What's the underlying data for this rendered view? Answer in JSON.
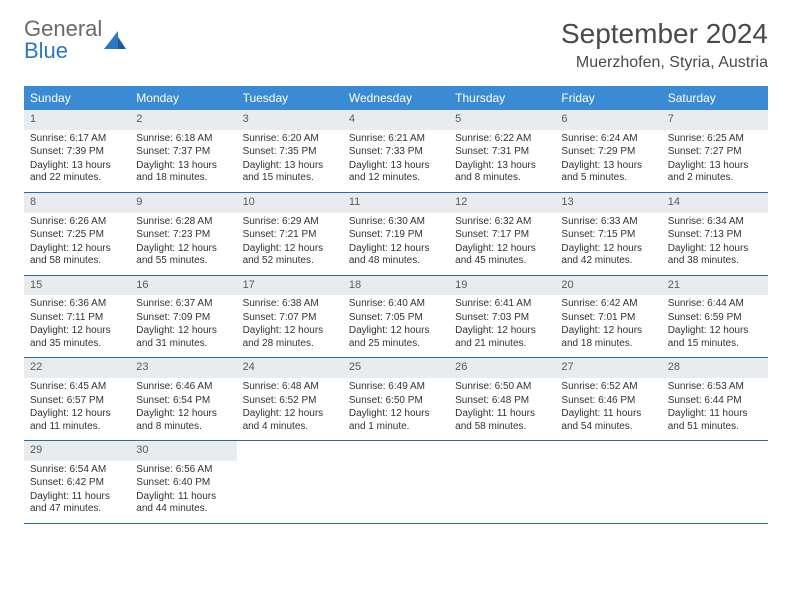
{
  "logo": {
    "text1": "General",
    "text2": "Blue"
  },
  "title": "September 2024",
  "location": "Muerzhofen, Styria, Austria",
  "colors": {
    "header_bg": "#3b8bd4",
    "header_text": "#ffffff",
    "daynum_bg": "#e8ecef",
    "border": "#2b6aa8",
    "logo_gray": "#6a6a6a",
    "logo_blue": "#2b78c2",
    "text": "#333333"
  },
  "day_headers": [
    "Sunday",
    "Monday",
    "Tuesday",
    "Wednesday",
    "Thursday",
    "Friday",
    "Saturday"
  ],
  "weeks": [
    [
      {
        "n": "1",
        "sr": "Sunrise: 6:17 AM",
        "ss": "Sunset: 7:39 PM",
        "dl": "Daylight: 13 hours and 22 minutes."
      },
      {
        "n": "2",
        "sr": "Sunrise: 6:18 AM",
        "ss": "Sunset: 7:37 PM",
        "dl": "Daylight: 13 hours and 18 minutes."
      },
      {
        "n": "3",
        "sr": "Sunrise: 6:20 AM",
        "ss": "Sunset: 7:35 PM",
        "dl": "Daylight: 13 hours and 15 minutes."
      },
      {
        "n": "4",
        "sr": "Sunrise: 6:21 AM",
        "ss": "Sunset: 7:33 PM",
        "dl": "Daylight: 13 hours and 12 minutes."
      },
      {
        "n": "5",
        "sr": "Sunrise: 6:22 AM",
        "ss": "Sunset: 7:31 PM",
        "dl": "Daylight: 13 hours and 8 minutes."
      },
      {
        "n": "6",
        "sr": "Sunrise: 6:24 AM",
        "ss": "Sunset: 7:29 PM",
        "dl": "Daylight: 13 hours and 5 minutes."
      },
      {
        "n": "7",
        "sr": "Sunrise: 6:25 AM",
        "ss": "Sunset: 7:27 PM",
        "dl": "Daylight: 13 hours and 2 minutes."
      }
    ],
    [
      {
        "n": "8",
        "sr": "Sunrise: 6:26 AM",
        "ss": "Sunset: 7:25 PM",
        "dl": "Daylight: 12 hours and 58 minutes."
      },
      {
        "n": "9",
        "sr": "Sunrise: 6:28 AM",
        "ss": "Sunset: 7:23 PM",
        "dl": "Daylight: 12 hours and 55 minutes."
      },
      {
        "n": "10",
        "sr": "Sunrise: 6:29 AM",
        "ss": "Sunset: 7:21 PM",
        "dl": "Daylight: 12 hours and 52 minutes."
      },
      {
        "n": "11",
        "sr": "Sunrise: 6:30 AM",
        "ss": "Sunset: 7:19 PM",
        "dl": "Daylight: 12 hours and 48 minutes."
      },
      {
        "n": "12",
        "sr": "Sunrise: 6:32 AM",
        "ss": "Sunset: 7:17 PM",
        "dl": "Daylight: 12 hours and 45 minutes."
      },
      {
        "n": "13",
        "sr": "Sunrise: 6:33 AM",
        "ss": "Sunset: 7:15 PM",
        "dl": "Daylight: 12 hours and 42 minutes."
      },
      {
        "n": "14",
        "sr": "Sunrise: 6:34 AM",
        "ss": "Sunset: 7:13 PM",
        "dl": "Daylight: 12 hours and 38 minutes."
      }
    ],
    [
      {
        "n": "15",
        "sr": "Sunrise: 6:36 AM",
        "ss": "Sunset: 7:11 PM",
        "dl": "Daylight: 12 hours and 35 minutes."
      },
      {
        "n": "16",
        "sr": "Sunrise: 6:37 AM",
        "ss": "Sunset: 7:09 PM",
        "dl": "Daylight: 12 hours and 31 minutes."
      },
      {
        "n": "17",
        "sr": "Sunrise: 6:38 AM",
        "ss": "Sunset: 7:07 PM",
        "dl": "Daylight: 12 hours and 28 minutes."
      },
      {
        "n": "18",
        "sr": "Sunrise: 6:40 AM",
        "ss": "Sunset: 7:05 PM",
        "dl": "Daylight: 12 hours and 25 minutes."
      },
      {
        "n": "19",
        "sr": "Sunrise: 6:41 AM",
        "ss": "Sunset: 7:03 PM",
        "dl": "Daylight: 12 hours and 21 minutes."
      },
      {
        "n": "20",
        "sr": "Sunrise: 6:42 AM",
        "ss": "Sunset: 7:01 PM",
        "dl": "Daylight: 12 hours and 18 minutes."
      },
      {
        "n": "21",
        "sr": "Sunrise: 6:44 AM",
        "ss": "Sunset: 6:59 PM",
        "dl": "Daylight: 12 hours and 15 minutes."
      }
    ],
    [
      {
        "n": "22",
        "sr": "Sunrise: 6:45 AM",
        "ss": "Sunset: 6:57 PM",
        "dl": "Daylight: 12 hours and 11 minutes."
      },
      {
        "n": "23",
        "sr": "Sunrise: 6:46 AM",
        "ss": "Sunset: 6:54 PM",
        "dl": "Daylight: 12 hours and 8 minutes."
      },
      {
        "n": "24",
        "sr": "Sunrise: 6:48 AM",
        "ss": "Sunset: 6:52 PM",
        "dl": "Daylight: 12 hours and 4 minutes."
      },
      {
        "n": "25",
        "sr": "Sunrise: 6:49 AM",
        "ss": "Sunset: 6:50 PM",
        "dl": "Daylight: 12 hours and 1 minute."
      },
      {
        "n": "26",
        "sr": "Sunrise: 6:50 AM",
        "ss": "Sunset: 6:48 PM",
        "dl": "Daylight: 11 hours and 58 minutes."
      },
      {
        "n": "27",
        "sr": "Sunrise: 6:52 AM",
        "ss": "Sunset: 6:46 PM",
        "dl": "Daylight: 11 hours and 54 minutes."
      },
      {
        "n": "28",
        "sr": "Sunrise: 6:53 AM",
        "ss": "Sunset: 6:44 PM",
        "dl": "Daylight: 11 hours and 51 minutes."
      }
    ],
    [
      {
        "n": "29",
        "sr": "Sunrise: 6:54 AM",
        "ss": "Sunset: 6:42 PM",
        "dl": "Daylight: 11 hours and 47 minutes."
      },
      {
        "n": "30",
        "sr": "Sunrise: 6:56 AM",
        "ss": "Sunset: 6:40 PM",
        "dl": "Daylight: 11 hours and 44 minutes."
      },
      null,
      null,
      null,
      null,
      null
    ]
  ]
}
